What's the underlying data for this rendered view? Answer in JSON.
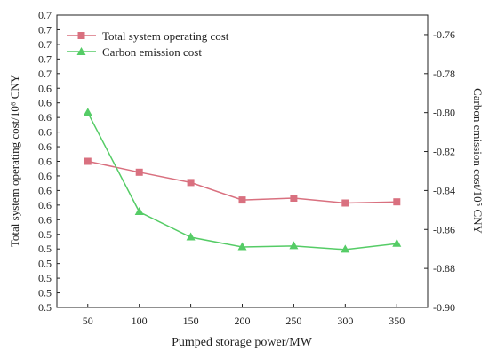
{
  "chart_data": {
    "type": "line",
    "x": [
      50,
      100,
      150,
      200,
      250,
      300,
      350
    ],
    "xlabel": "Pumped storage power/MW",
    "x_ticks": [
      "50",
      "100",
      "150",
      "200",
      "250",
      "300",
      "350"
    ],
    "xlim": [
      20,
      380
    ],
    "left_axis": {
      "ylabel": "Total system operating cost/10⁶ CNY",
      "ylim": [
        0.5,
        0.7
      ],
      "tick_values": [
        0.5,
        0.51,
        0.52,
        0.53,
        0.54,
        0.55,
        0.56,
        0.57,
        0.58,
        0.59,
        0.6,
        0.61,
        0.62,
        0.63,
        0.64,
        0.65,
        0.66,
        0.67,
        0.68,
        0.69,
        0.7
      ],
      "tick_labels": [
        "0.5",
        "0.5",
        "0.5",
        "0.5",
        "0.5",
        "0.5",
        "0.6",
        "0.6",
        "0.6",
        "0.6",
        "0.6",
        "0.6",
        "0.6",
        "0.6",
        "0.6",
        "0.6",
        "0.7",
        "0.7",
        "0.7",
        "0.7",
        "0.7"
      ]
    },
    "right_axis": {
      "ylabel": "Carbon emission cost/10⁵ CNY",
      "ylim": [
        -0.9,
        -0.75
      ],
      "tick_values": [
        -0.9,
        -0.88,
        -0.86,
        -0.84,
        -0.82,
        -0.8,
        -0.78,
        -0.76
      ],
      "tick_labels": [
        "-0.90",
        "-0.88",
        "-0.86",
        "-0.84",
        "-0.82",
        "-0.80",
        "-0.78",
        "-0.76"
      ]
    },
    "series": [
      {
        "name": "Total system operating cost",
        "axis": "left",
        "marker": "square",
        "color": "#d9707f",
        "values": [
          0.6,
          0.5925,
          0.5855,
          0.5735,
          0.5748,
          0.5714,
          0.5722
        ]
      },
      {
        "name": "Carbon emission cost",
        "axis": "right",
        "marker": "triangle",
        "color": "#55cc66",
        "values": [
          -0.8,
          -0.851,
          -0.864,
          -0.869,
          -0.8685,
          -0.8703,
          -0.8673
        ]
      }
    ],
    "legend": "top-left",
    "grid": false
  }
}
